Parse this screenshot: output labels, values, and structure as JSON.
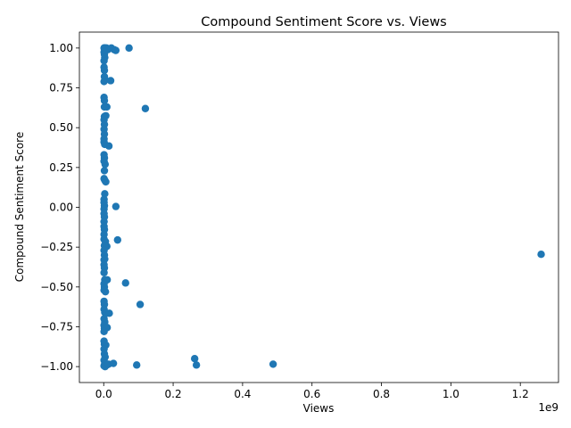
{
  "chart_data": {
    "type": "scatter",
    "title": "Compound Sentiment Score vs. Views",
    "xlabel": "Views",
    "ylabel": "Compound Sentiment Score",
    "x_offset_label": "1e9",
    "xlim": [
      -0.07,
      1.31
    ],
    "ylim": [
      -1.1,
      1.1
    ],
    "x_ticks": [
      0.0,
      0.2,
      0.4,
      0.6,
      0.8,
      1.0,
      1.2
    ],
    "x_tick_labels": [
      "0.0",
      "0.2",
      "0.4",
      "0.6",
      "0.8",
      "1.0",
      "1.2"
    ],
    "y_ticks": [
      -1.0,
      -0.75,
      -0.5,
      -0.25,
      0.0,
      0.25,
      0.5,
      0.75,
      1.0
    ],
    "y_tick_labels": [
      "−1.00",
      "−0.75",
      "−0.50",
      "−0.25",
      "0.00",
      "0.25",
      "0.50",
      "0.75",
      "1.00"
    ],
    "grid": false,
    "marker_color": "#1f77b4",
    "points": [
      [
        0.001,
        1.0
      ],
      [
        0.002,
        1.0
      ],
      [
        0.004,
        1.0
      ],
      [
        0.006,
        0.995
      ],
      [
        0.008,
        1.0
      ],
      [
        0.012,
        0.99
      ],
      [
        0.022,
        1.0
      ],
      [
        0.03,
        0.99
      ],
      [
        0.035,
        0.985
      ],
      [
        0.073,
        1.0
      ],
      [
        0.001,
        0.975
      ],
      [
        0.002,
        0.96
      ],
      [
        0.003,
        0.94
      ],
      [
        0.001,
        0.92
      ],
      [
        0.001,
        0.88
      ],
      [
        0.002,
        0.86
      ],
      [
        0.002,
        0.82
      ],
      [
        0.004,
        0.8
      ],
      [
        0.001,
        0.79
      ],
      [
        0.02,
        0.795
      ],
      [
        0.001,
        0.69
      ],
      [
        0.002,
        0.67
      ],
      [
        0.002,
        0.63
      ],
      [
        0.009,
        0.63
      ],
      [
        0.12,
        0.62
      ],
      [
        0.002,
        0.57
      ],
      [
        0.006,
        0.575
      ],
      [
        0.001,
        0.55
      ],
      [
        0.002,
        0.52
      ],
      [
        0.001,
        0.49
      ],
      [
        0.002,
        0.46
      ],
      [
        0.001,
        0.43
      ],
      [
        0.001,
        0.41
      ],
      [
        0.003,
        0.395
      ],
      [
        0.015,
        0.385
      ],
      [
        0.001,
        0.33
      ],
      [
        0.002,
        0.31
      ],
      [
        0.001,
        0.29
      ],
      [
        0.004,
        0.27
      ],
      [
        0.002,
        0.23
      ],
      [
        0.001,
        0.18
      ],
      [
        0.003,
        0.17
      ],
      [
        0.006,
        0.16
      ],
      [
        0.003,
        0.085
      ],
      [
        0.001,
        0.05
      ],
      [
        0.001,
        0.03
      ],
      [
        0.002,
        0.01
      ],
      [
        0.035,
        0.005
      ],
      [
        0.001,
        -0.01
      ],
      [
        0.001,
        -0.04
      ],
      [
        0.002,
        -0.06
      ],
      [
        0.001,
        -0.09
      ],
      [
        0.001,
        -0.12
      ],
      [
        0.002,
        -0.14
      ],
      [
        0.001,
        -0.17
      ],
      [
        0.001,
        -0.2
      ],
      [
        0.005,
        -0.215
      ],
      [
        0.04,
        -0.205
      ],
      [
        0.002,
        -0.24
      ],
      [
        0.009,
        -0.245
      ],
      [
        0.001,
        -0.27
      ],
      [
        0.002,
        -0.3
      ],
      [
        0.001,
        -0.33
      ],
      [
        0.003,
        -0.325
      ],
      [
        0.001,
        -0.36
      ],
      [
        0.002,
        -0.38
      ],
      [
        0.001,
        -0.41
      ],
      [
        0.003,
        -0.455
      ],
      [
        0.01,
        -0.455
      ],
      [
        1.26,
        -0.295
      ],
      [
        0.063,
        -0.475
      ],
      [
        0.001,
        -0.48
      ],
      [
        0.002,
        -0.5
      ],
      [
        0.001,
        -0.52
      ],
      [
        0.005,
        -0.53
      ],
      [
        0.001,
        -0.59
      ],
      [
        0.002,
        -0.61
      ],
      [
        0.105,
        -0.61
      ],
      [
        0.001,
        -0.64
      ],
      [
        0.003,
        -0.66
      ],
      [
        0.008,
        -0.665
      ],
      [
        0.016,
        -0.665
      ],
      [
        0.001,
        -0.7
      ],
      [
        0.003,
        -0.72
      ],
      [
        0.001,
        -0.74
      ],
      [
        0.002,
        -0.76
      ],
      [
        0.01,
        -0.755
      ],
      [
        0.001,
        -0.78
      ],
      [
        0.001,
        -0.84
      ],
      [
        0.002,
        -0.86
      ],
      [
        0.006,
        -0.865
      ],
      [
        0.001,
        -0.89
      ],
      [
        0.002,
        -0.92
      ],
      [
        0.004,
        -0.94
      ],
      [
        0.001,
        -0.96
      ],
      [
        0.003,
        -0.98
      ],
      [
        0.001,
        -0.995
      ],
      [
        0.004,
        -1.0
      ],
      [
        0.009,
        -0.99
      ],
      [
        0.014,
        -0.985
      ],
      [
        0.028,
        -0.98
      ],
      [
        0.095,
        -0.99
      ],
      [
        0.262,
        -0.95
      ],
      [
        0.267,
        -0.99
      ],
      [
        0.488,
        -0.985
      ]
    ]
  }
}
